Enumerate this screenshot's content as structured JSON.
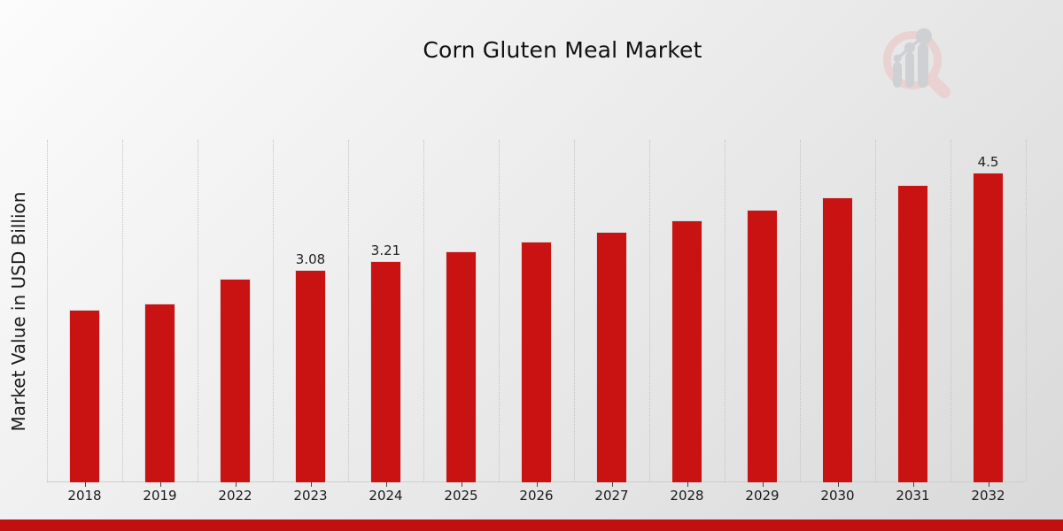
{
  "title": "Corn Gluten Meal Market",
  "watermark": {
    "icon": "magnifier-bar-chart-logo"
  },
  "chart_data": {
    "type": "bar",
    "title": "Corn Gluten Meal Market",
    "xlabel": "",
    "ylabel": "Market Value in USD Billion",
    "categories": [
      "2018",
      "2019",
      "2022",
      "2023",
      "2024",
      "2025",
      "2026",
      "2027",
      "2028",
      "2029",
      "2030",
      "2031",
      "2032"
    ],
    "values": [
      2.5,
      2.6,
      2.95,
      3.08,
      3.21,
      3.35,
      3.49,
      3.64,
      3.8,
      3.96,
      4.13,
      4.31,
      4.5
    ],
    "bar_labels": [
      "",
      "",
      "",
      "3.08",
      "3.21",
      "",
      "",
      "",
      "",
      "",
      "",
      "",
      "4.5"
    ],
    "ylim": [
      0,
      4.97
    ],
    "grid": "vertical-dotted",
    "legend": "none"
  },
  "colors": {
    "bar": "#c91212",
    "bar_edge": "#dcdcdc",
    "grid_line": "#c3c3c3",
    "axis_line": "#cdcdcd",
    "tick": "#444444",
    "title_text": "#111111",
    "axis_text": "#1a1a1a",
    "footer_strip": "#c20f0f",
    "background_start": "#fcfcfc",
    "background_mid": "#e9e9e9",
    "background_end": "#d9d9d9",
    "watermark_ring": "#ead2d2",
    "watermark_gray": "#ced0d4"
  }
}
